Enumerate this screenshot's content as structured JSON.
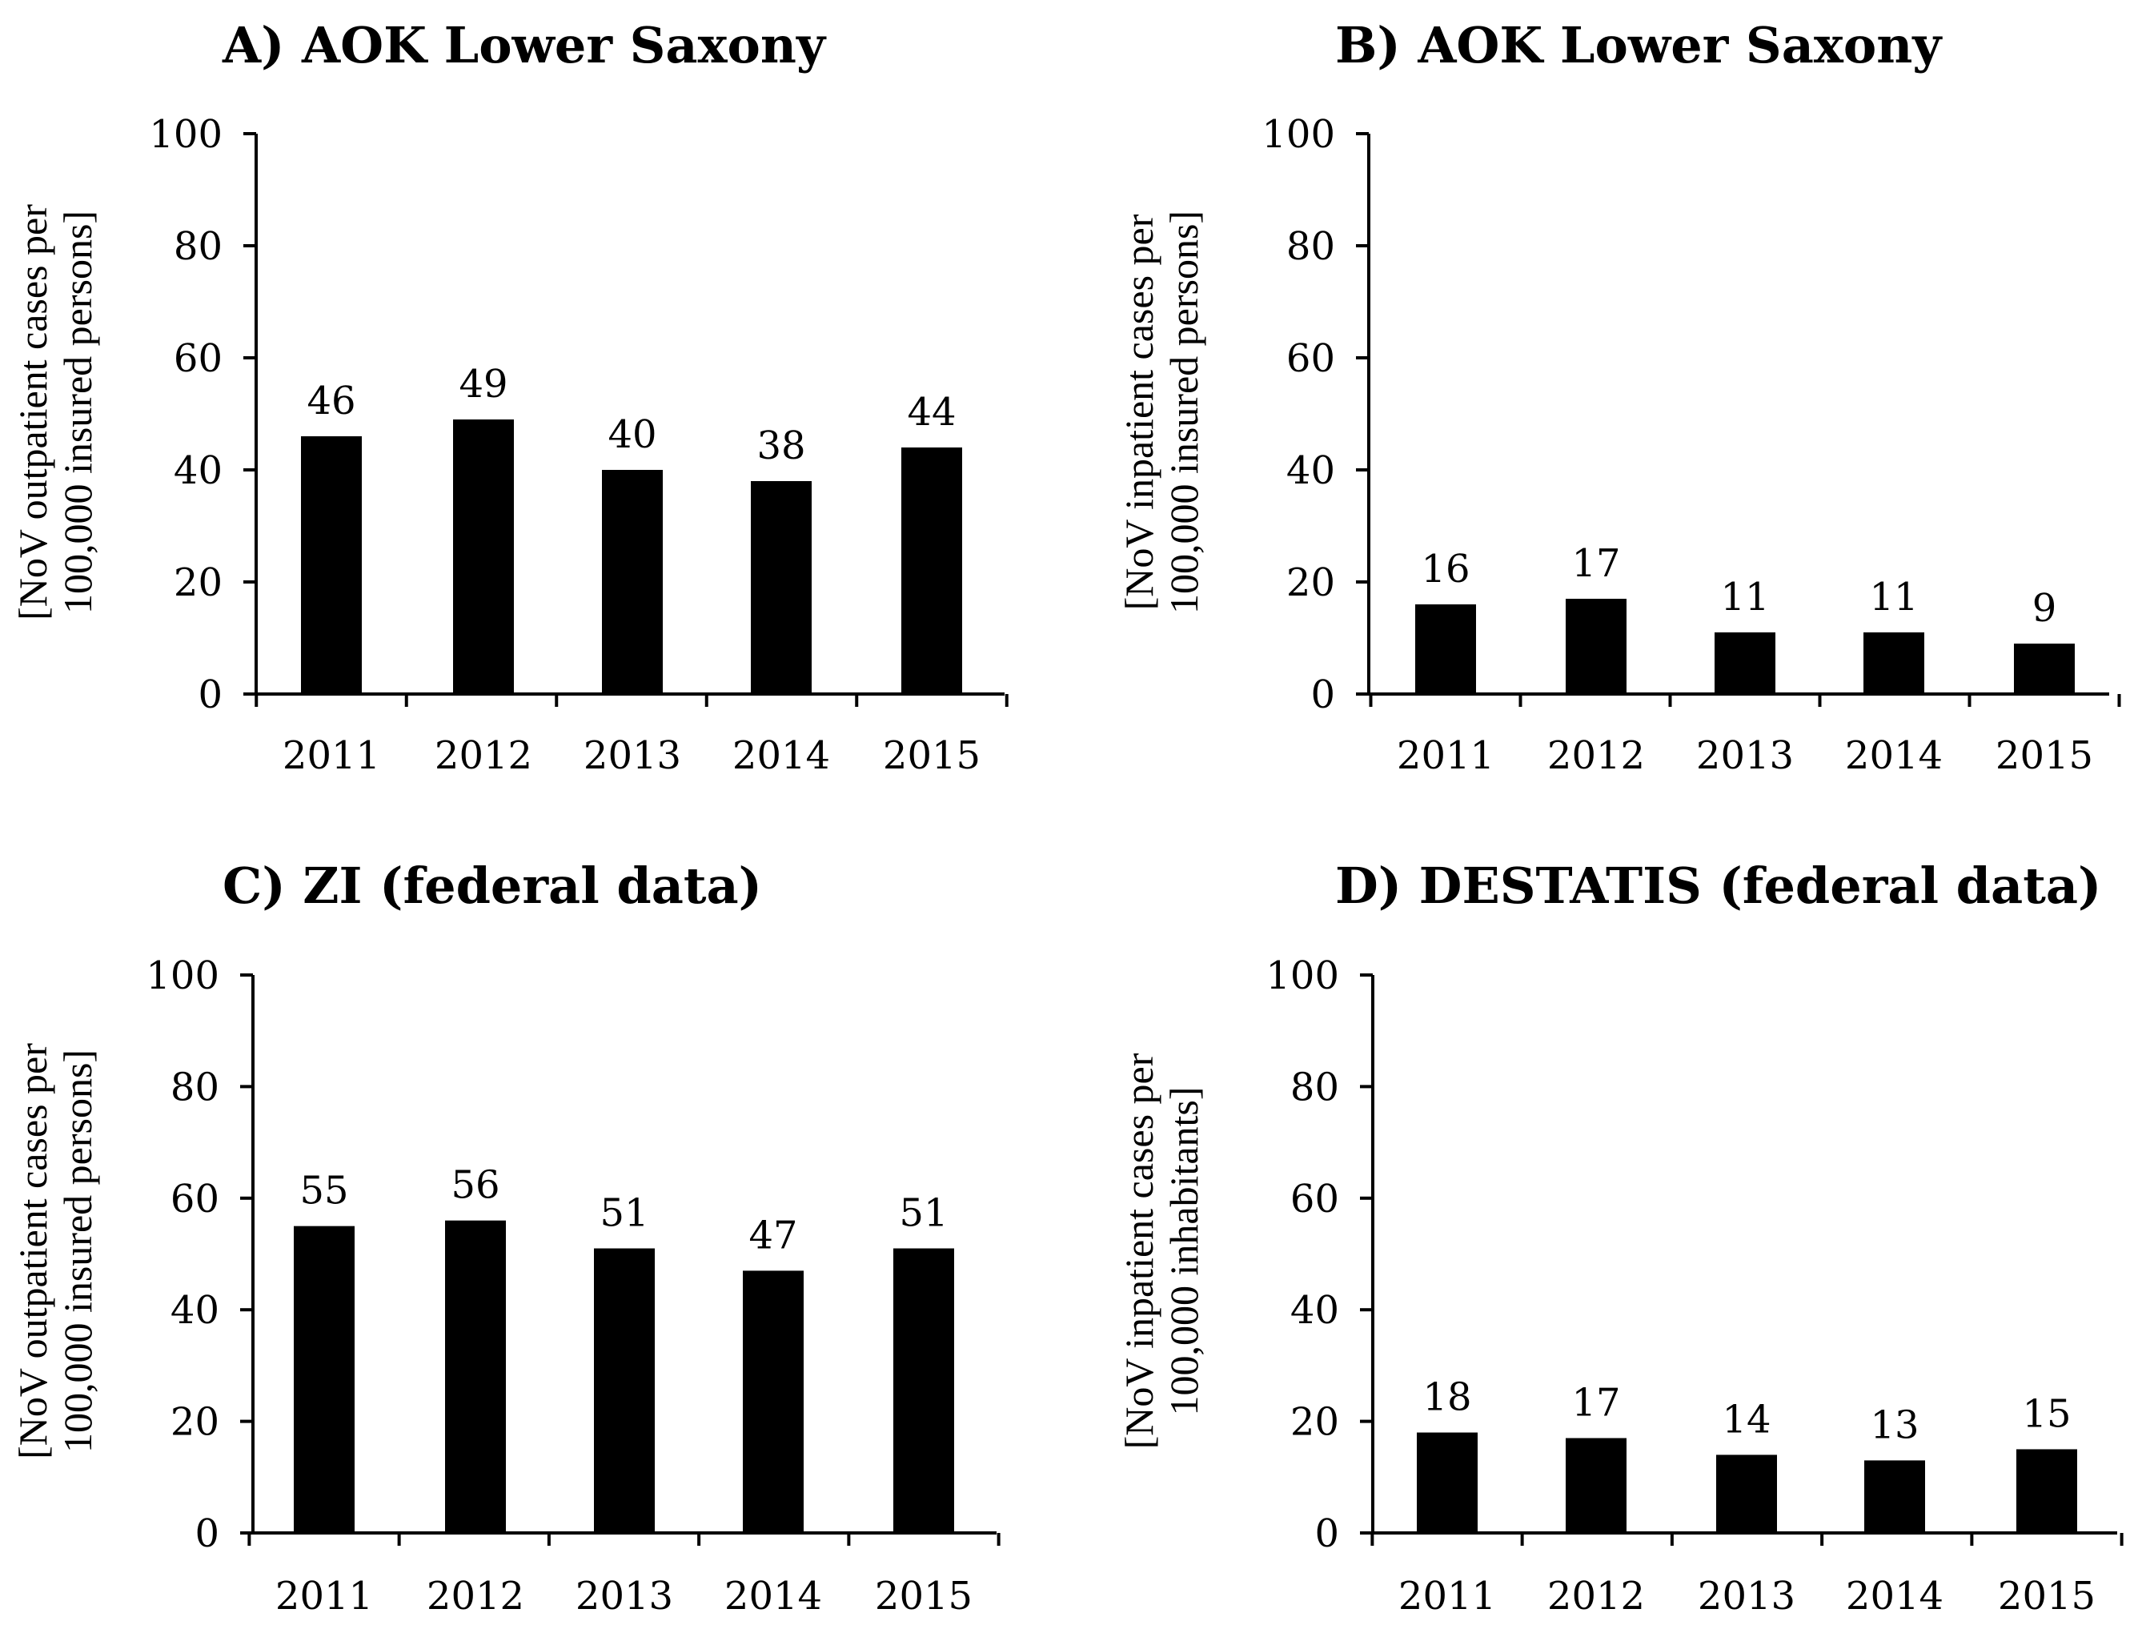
{
  "chart_data": [
    {
      "type": "bar",
      "title": "A) AOK Lower Saxony",
      "ylabel": [
        "[NoV outpatient cases per",
        "100,000 insured persons]"
      ],
      "xlabel": "",
      "categories": [
        "2011",
        "2012",
        "2013",
        "2014",
        "2015"
      ],
      "values": [
        46,
        49,
        40,
        38,
        44
      ],
      "ylim": [
        0,
        100
      ],
      "yticks": [
        0,
        20,
        40,
        60,
        80,
        100
      ],
      "data_labels": [
        "46",
        "49",
        "40",
        "38",
        "44"
      ],
      "bar_color": "#000000",
      "grid": false,
      "legend": "none"
    },
    {
      "type": "bar",
      "title": "B) AOK Lower Saxony",
      "ylabel": [
        "[NoV inpatient cases per",
        "100,000 insured persons]"
      ],
      "xlabel": "",
      "categories": [
        "2011",
        "2012",
        "2013",
        "2014",
        "2015"
      ],
      "values": [
        16,
        17,
        11,
        11,
        9
      ],
      "ylim": [
        0,
        100
      ],
      "yticks": [
        0,
        20,
        40,
        60,
        80,
        100
      ],
      "data_labels": [
        "16",
        "17",
        "11",
        "11",
        "9"
      ],
      "bar_color": "#000000",
      "grid": false,
      "legend": "none"
    },
    {
      "type": "bar",
      "title": "C) ZI (federal data)",
      "ylabel": [
        "[NoV outpatient cases per",
        "100,000 insured persons]"
      ],
      "xlabel": "",
      "categories": [
        "2011",
        "2012",
        "2013",
        "2014",
        "2015"
      ],
      "values": [
        55,
        56,
        51,
        47,
        51
      ],
      "ylim": [
        0,
        100
      ],
      "yticks": [
        0,
        20,
        40,
        60,
        80,
        100
      ],
      "data_labels": [
        "55",
        "56",
        "51",
        "47",
        "51"
      ],
      "bar_color": "#000000",
      "grid": false,
      "legend": "none"
    },
    {
      "type": "bar",
      "title": "D) DESTATIS (federal data)",
      "ylabel": [
        "[NoV inpatient cases per",
        "100,000 inhabitants]"
      ],
      "xlabel": "",
      "categories": [
        "2011",
        "2012",
        "2013",
        "2014",
        "2015"
      ],
      "values": [
        18,
        17,
        14,
        13,
        15
      ],
      "ylim": [
        0,
        100
      ],
      "yticks": [
        0,
        20,
        40,
        60,
        80,
        100
      ],
      "data_labels": [
        "18",
        "17",
        "14",
        "13",
        "15"
      ],
      "bar_color": "#000000",
      "grid": false,
      "legend": "none"
    }
  ]
}
